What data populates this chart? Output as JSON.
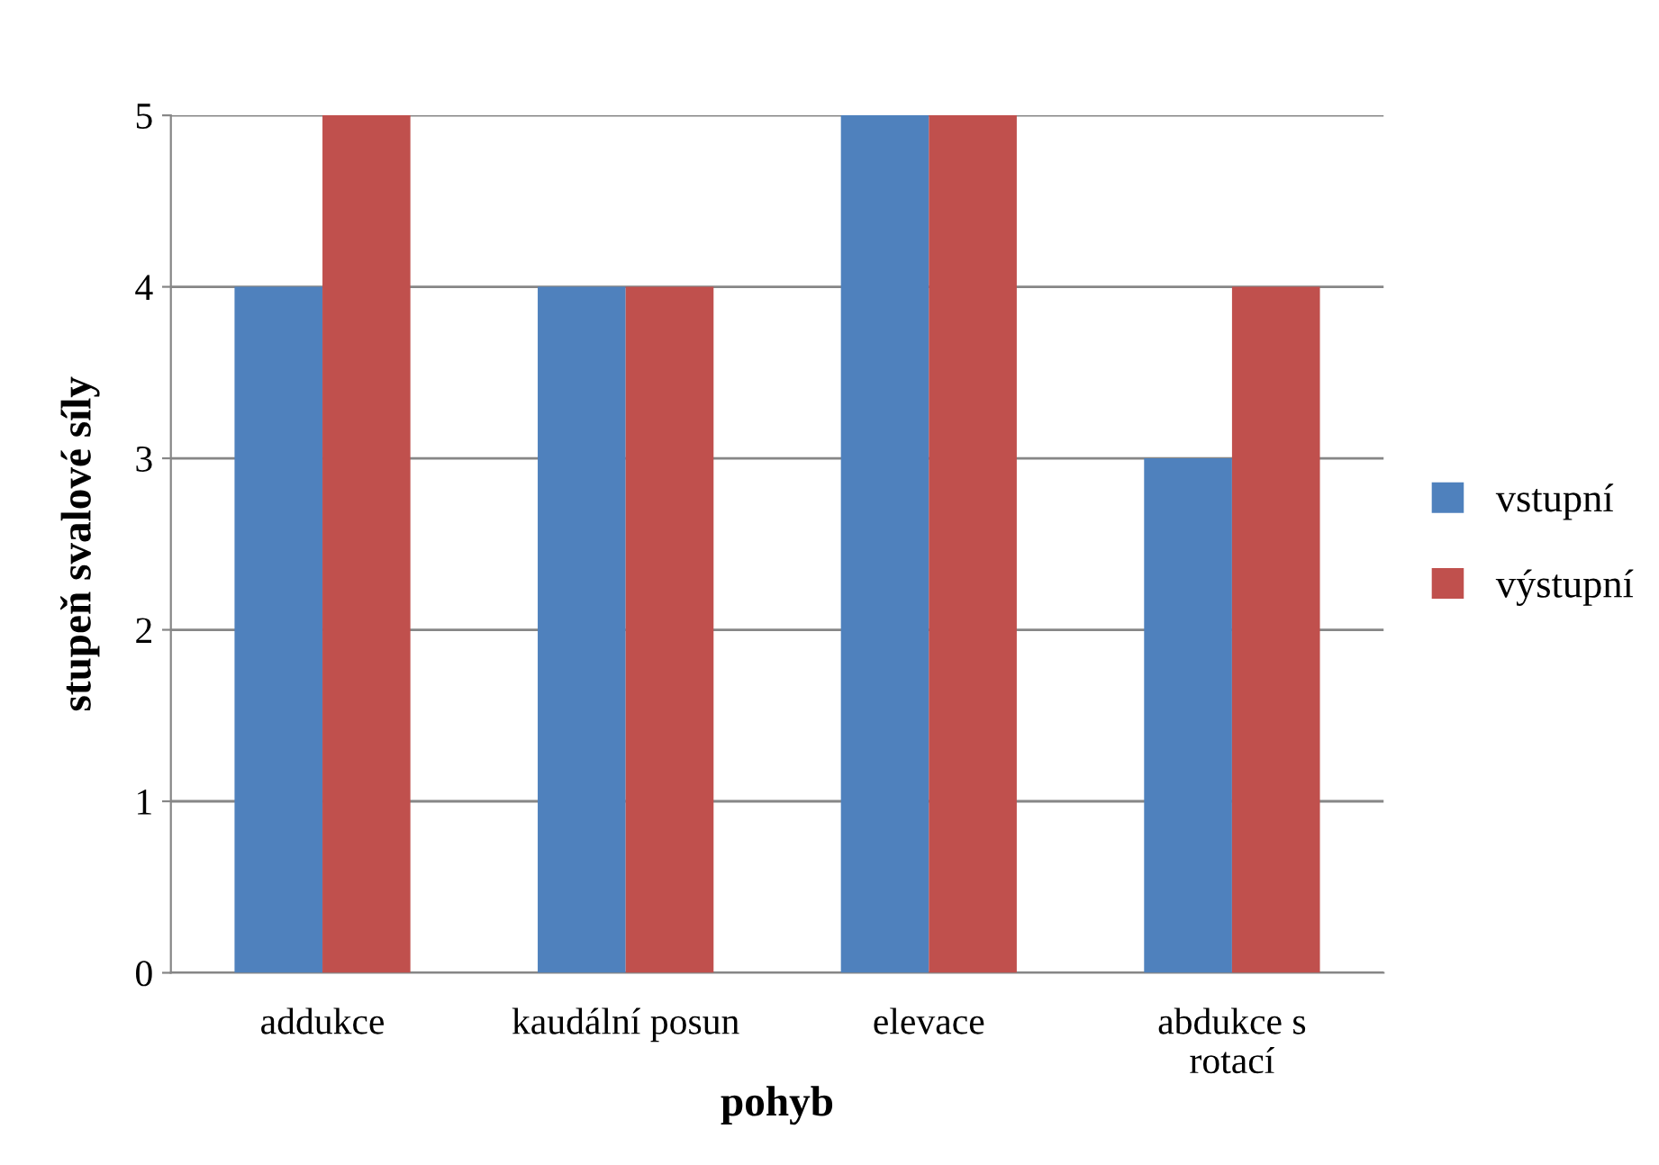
{
  "chart_data": {
    "type": "bar",
    "xlabel": "pohyb",
    "ylabel": "stupeň svalové síly",
    "categories": [
      "addukce",
      "kaudální posun",
      "elevace",
      "abdukce s\nrotací"
    ],
    "series": [
      {
        "name": "vstupní",
        "color": "#4f81bd",
        "values": [
          4,
          4,
          5,
          3
        ]
      },
      {
        "name": "výstupní",
        "color": "#c0504d",
        "values": [
          5,
          4,
          5,
          4
        ]
      }
    ],
    "ylim": [
      0,
      5
    ],
    "yticks": [
      0,
      1,
      2,
      3,
      4,
      5
    ],
    "grid": "y",
    "legend": "right"
  }
}
